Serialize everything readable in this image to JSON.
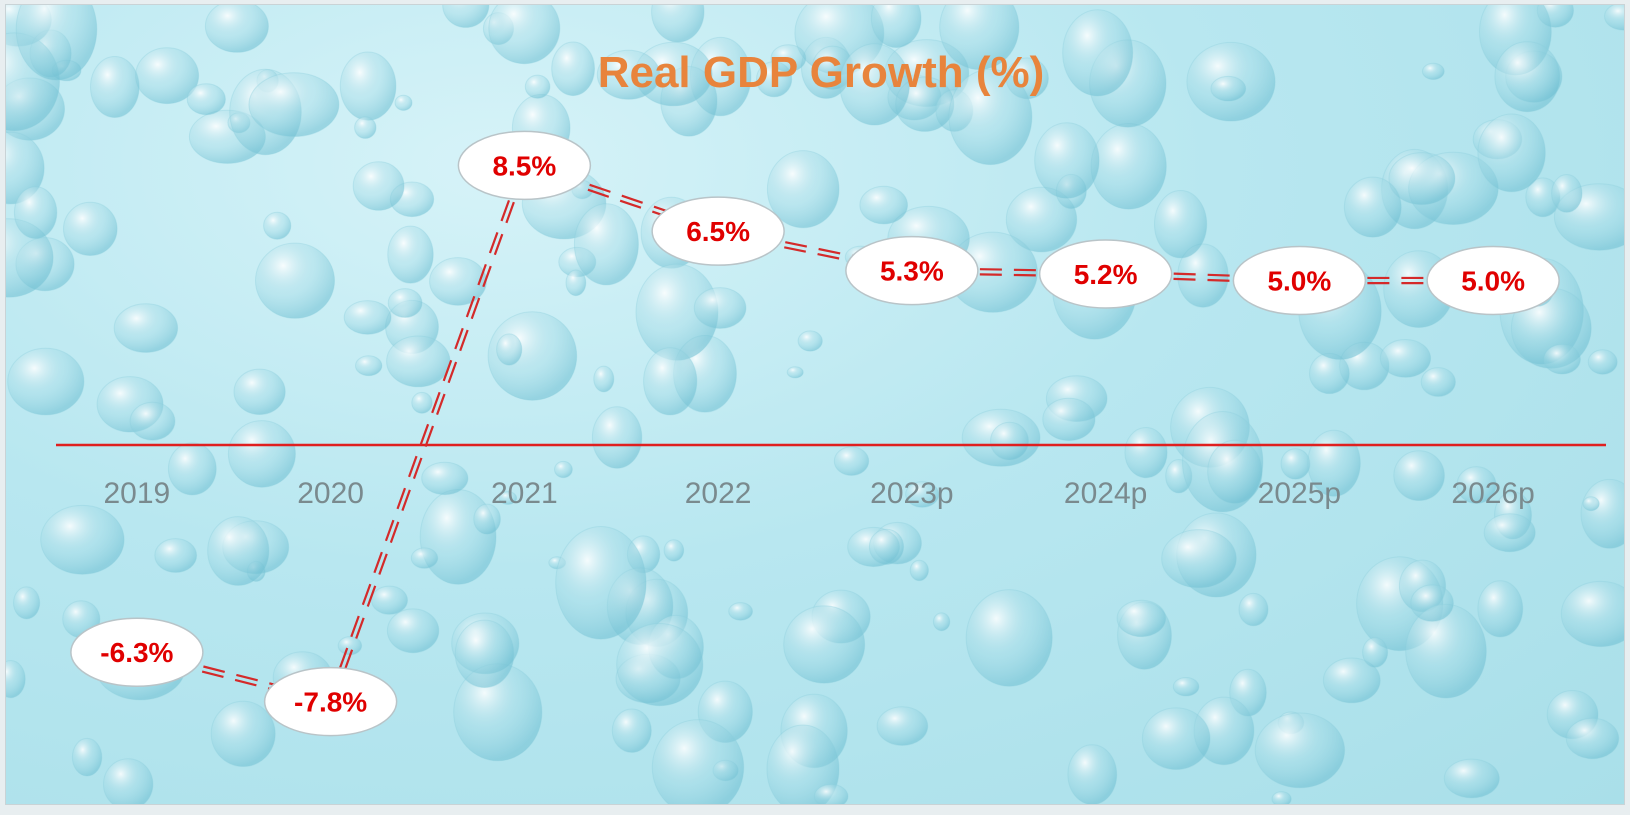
{
  "chart_data": {
    "type": "line",
    "title": "Real GDP Growth (%)",
    "xlabel": "",
    "ylabel": "",
    "categories": [
      "2019",
      "2020",
      "2021",
      "2022",
      "2023p",
      "2024p",
      "2025p",
      "2026p"
    ],
    "series": [
      {
        "values": [
          -6.3,
          -7.8,
          8.5,
          6.5,
          5.3,
          5.2,
          5.0,
          5.0
        ],
        "labels": [
          "-6.3%",
          "-7.8%",
          "8.5%",
          "6.5%",
          "5.3%",
          "5.2%",
          "5.0%",
          "5.0%"
        ]
      }
    ],
    "ylim": [
      -11,
      13
    ],
    "grid": false,
    "legend": "none",
    "line_style": "dashed double",
    "colors": {
      "title": "#e8843c",
      "line": "#d42a2a",
      "zero_line": "#e01f1f",
      "label_text": "#e00000",
      "label_bubble": "#ffffff",
      "tick_text": "#7a8a8e"
    }
  }
}
